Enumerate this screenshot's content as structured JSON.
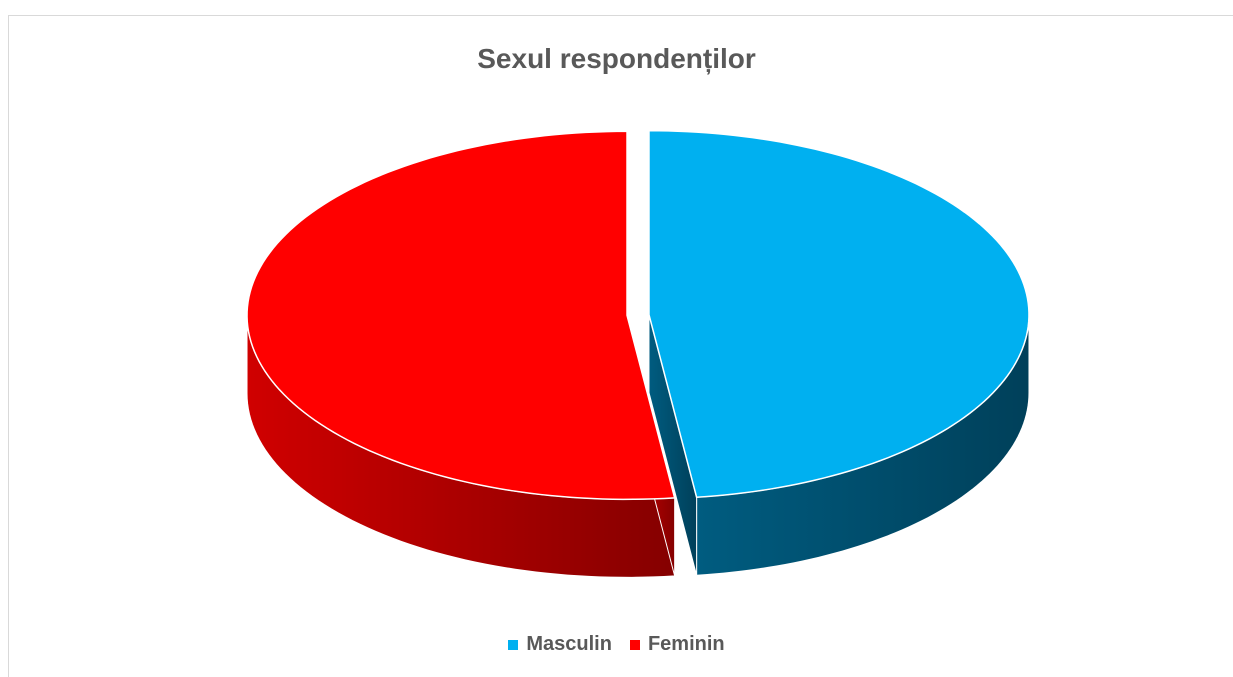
{
  "chart_data": {
    "type": "pie",
    "title": "Sexul respondenților",
    "slices": [
      {
        "name": "Masculin",
        "value": 48,
        "color": "#00B0F0"
      },
      {
        "name": "Feminin",
        "value": 52,
        "color": "#FF0000"
      }
    ],
    "style": "3d-exploded",
    "legend_position": "bottom"
  }
}
